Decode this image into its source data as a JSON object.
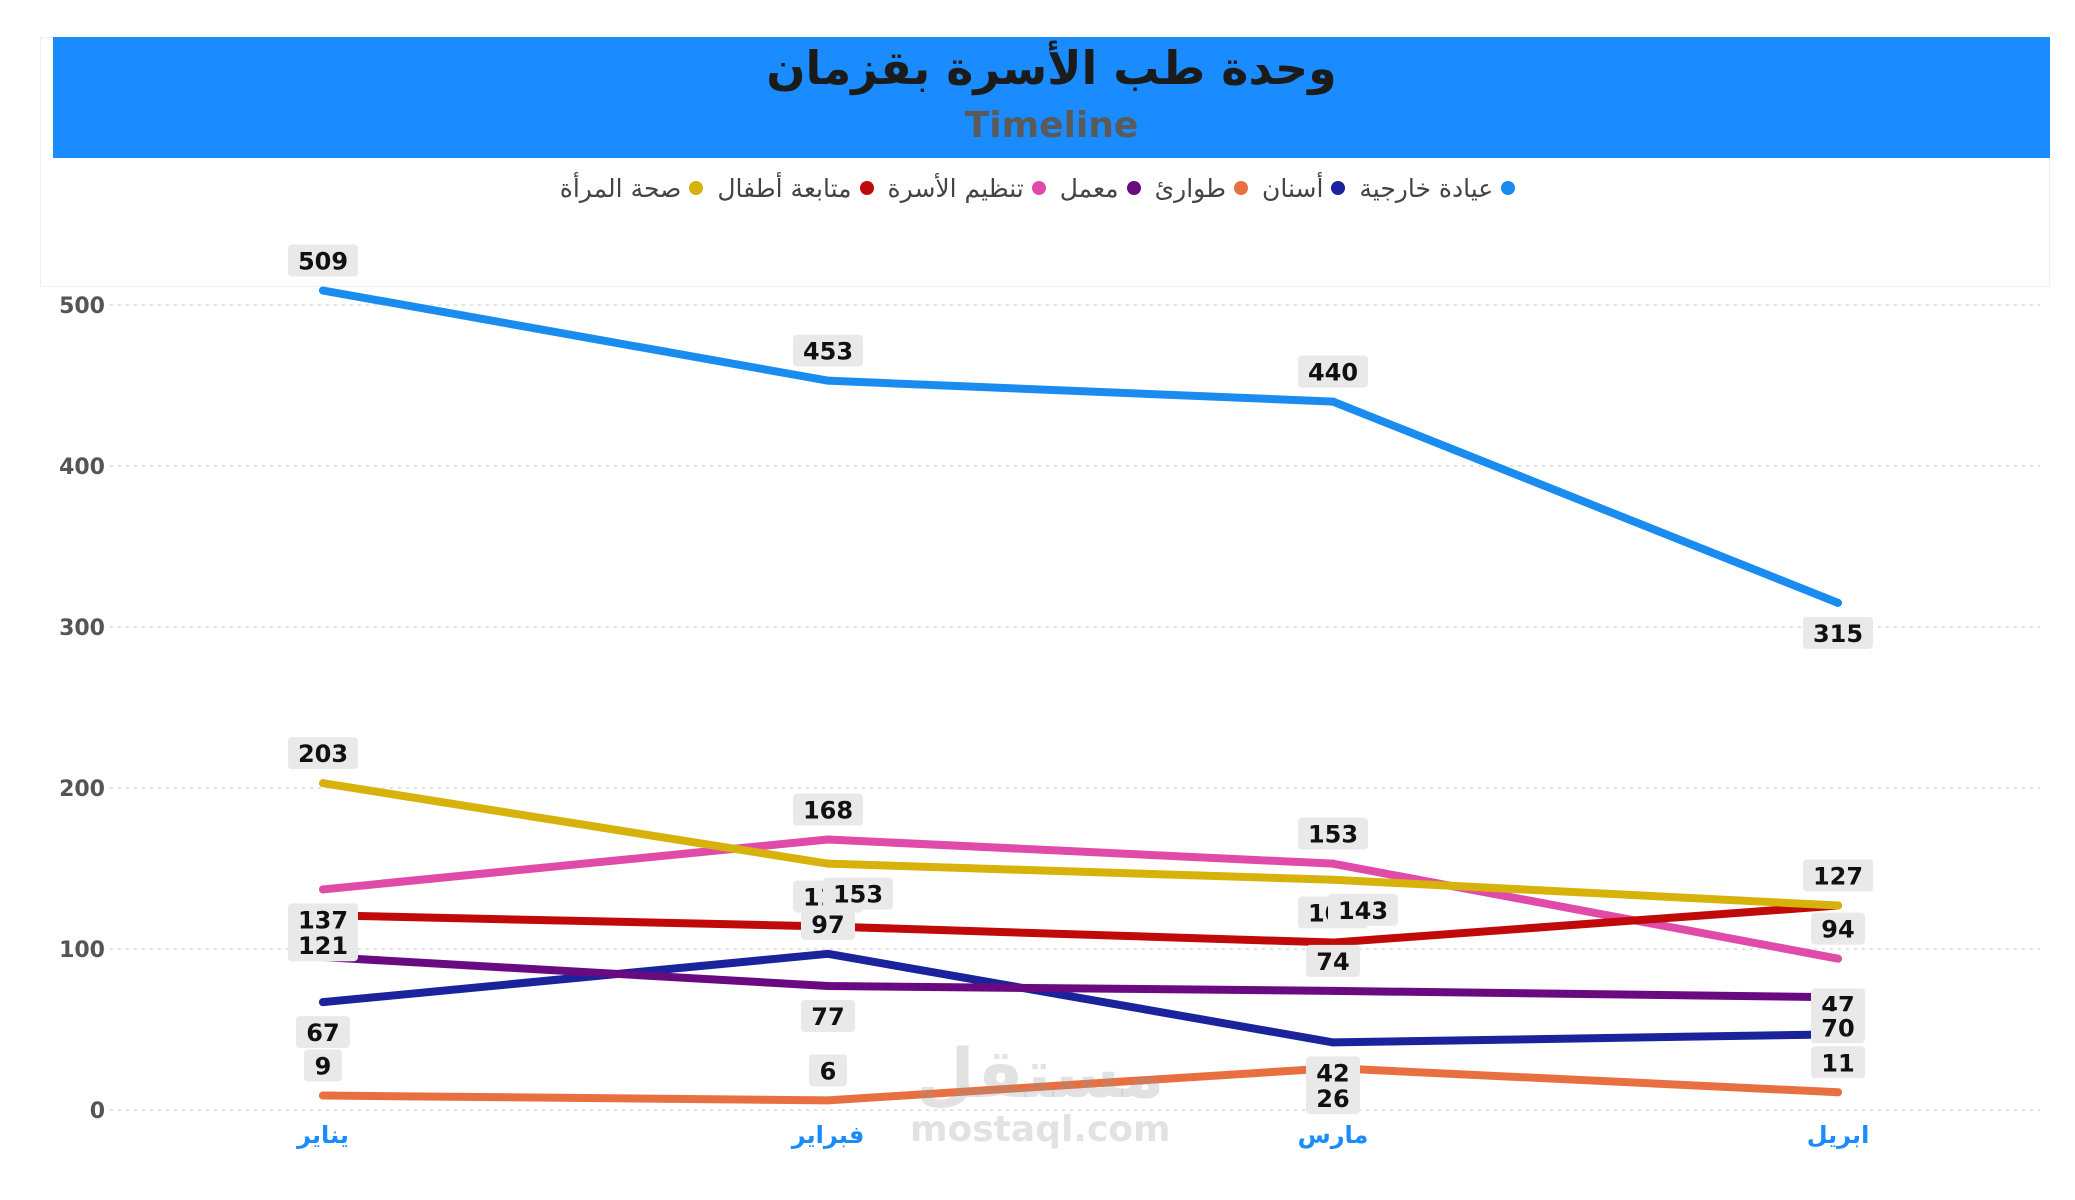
{
  "chart_data": {
    "type": "line",
    "title": "وحدة طب الأسرة بقزمان",
    "subtitle": "Timeline",
    "categories": [
      "يناير",
      "فبراير",
      "مارس",
      "ابريل"
    ],
    "ylim": [
      0,
      500
    ],
    "yticks": [
      0,
      100,
      200,
      300,
      400,
      500
    ],
    "grid": true,
    "legend_position": "top",
    "series": [
      {
        "name": "عيادة خارجية",
        "color": "#1a8cf0",
        "values": [
          509,
          453,
          440,
          315
        ]
      },
      {
        "name": "أسنان",
        "color": "#1a239c",
        "values": [
          67,
          97,
          42,
          47
        ]
      },
      {
        "name": "طوارئ",
        "color": "#e87040",
        "values": [
          9,
          6,
          26,
          11
        ]
      },
      {
        "name": "معمل",
        "color": "#6a0a80",
        "values": [
          95,
          77,
          74,
          70
        ]
      },
      {
        "name": "تنظيم الأسرة",
        "color": "#e04aa8",
        "values": [
          137,
          168,
          153,
          94
        ]
      },
      {
        "name": "متابعة أطفال",
        "color": "#c00a0a",
        "values": [
          121,
          114,
          104,
          127
        ]
      },
      {
        "name": "صحة المرأة",
        "color": "#d6b20a",
        "values": [
          203,
          153,
          143,
          127
        ]
      }
    ]
  },
  "watermark": {
    "main": "مستقل",
    "sub": "mostaql.com"
  }
}
